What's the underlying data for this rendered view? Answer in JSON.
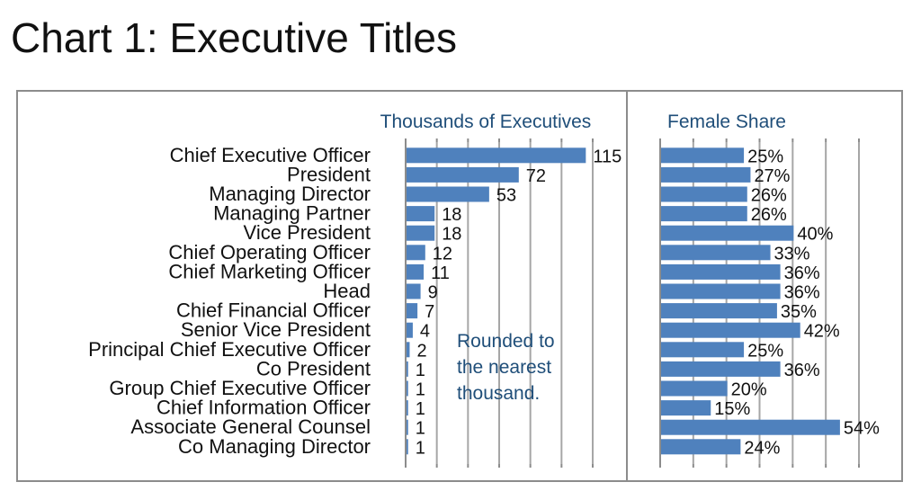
{
  "chart_data": {
    "title": "Chart 1: Executive Titles",
    "type": "bar",
    "orientation": "horizontal",
    "categories": [
      "Chief Executive Officer",
      "President",
      "Managing Director",
      "Managing Partner",
      "Vice President",
      "Chief Operating Officer",
      "Chief Marketing Officer",
      "Head",
      "Chief Financial Officer",
      "Senior Vice President",
      "Principal Chief Executive Officer",
      "Co President",
      "Group Chief Executive Officer",
      "Chief Information Officer",
      "Associate General Counsel",
      "Co Managing Director"
    ],
    "series": [
      {
        "name": "Thousands of Executives",
        "values": [
          115,
          72,
          53,
          18,
          18,
          12,
          11,
          9,
          7,
          4,
          2,
          1,
          1,
          1,
          1,
          1
        ],
        "labels": [
          "115",
          "72",
          "53",
          "18",
          "18",
          "12",
          "11",
          "9",
          "7",
          "4",
          "2",
          "1",
          "1",
          "1",
          "1",
          "1"
        ],
        "xlim": [
          0,
          120
        ],
        "tick_step": 20
      },
      {
        "name": "Female Share",
        "values": [
          25,
          27,
          26,
          26,
          40,
          33,
          36,
          36,
          35,
          42,
          25,
          36,
          20,
          15,
          54,
          24
        ],
        "labels": [
          "25%",
          "27%",
          "26%",
          "26%",
          "40%",
          "33%",
          "36%",
          "36%",
          "35%",
          "42%",
          "25%",
          "36%",
          "20%",
          "15%",
          "54%",
          "24%"
        ],
        "xlim": [
          0,
          60
        ],
        "tick_step": 10
      }
    ],
    "annotation": "Rounded to the nearest thousand.",
    "annotation_lines": [
      "Rounded to",
      "the nearest",
      "thousand."
    ],
    "bar_color": "#4f81bd",
    "grid": true
  }
}
